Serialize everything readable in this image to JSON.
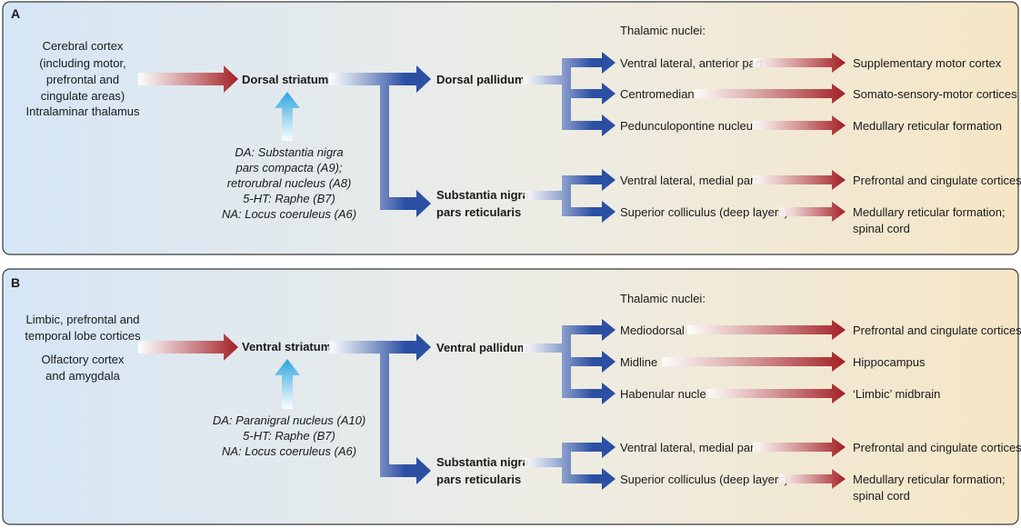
{
  "colors": {
    "panel_left": "#d6e6f6",
    "panel_mid": "#ecece6",
    "panel_right": "#f5e6c6",
    "red_arrow": "#a31f24",
    "blue_arrow": "#2b4fa3",
    "light_blue_arrow": "#29a3e0"
  },
  "panelA": {
    "label": "A",
    "inputs": [
      "Cerebral cortex",
      "(including motor,",
      "prefrontal and",
      "cingulate areas)",
      "Intralaminar thalamus"
    ],
    "striatum": "Dorsal striatum",
    "modulators": [
      "DA: Substantia nigra",
      "pars compacta (A9);",
      "retrorubral nucleus (A8)",
      "5-HT: Raphe (B7)",
      "NA: Locus coeruleus (A6)"
    ],
    "pallidum": "Dorsal pallidum",
    "snr": [
      "Substantia nigra",
      "pars reticularis"
    ],
    "thalamic_heading": "Thalamic nuclei:",
    "pallidum_targets": [
      {
        "nucleus": "Ventral lateral, anterior part",
        "output": [
          "Supplementary motor cortex"
        ]
      },
      {
        "nucleus": "Centromedian",
        "output": [
          "Somato-sensory-motor cortices"
        ]
      },
      {
        "nucleus": "Pedunculopontine nucleus",
        "output": [
          "Medullary reticular formation"
        ]
      }
    ],
    "snr_targets": [
      {
        "nucleus": "Ventral lateral, medial part",
        "output": [
          "Prefrontal and cingulate cortices"
        ]
      },
      {
        "nucleus": "Superior colliculus (deep layers)",
        "output": [
          "Medullary reticular formation;",
          "spinal cord"
        ]
      }
    ]
  },
  "panelB": {
    "label": "B",
    "inputs": [
      "Limbic, prefrontal and",
      "temporal lobe cortices"
    ],
    "inputs2": [
      "Olfactory cortex",
      "and amygdala"
    ],
    "striatum": "Ventral striatum",
    "modulators": [
      "DA: Paranigral nucleus (A10)",
      "5-HT: Raphe (B7)",
      "NA: Locus coeruleus (A6)"
    ],
    "pallidum": "Ventral pallidum",
    "snr": [
      "Substantia nigra",
      "pars reticularis"
    ],
    "thalamic_heading": "Thalamic nuclei:",
    "pallidum_targets": [
      {
        "nucleus": "Mediodorsal",
        "output": [
          "Prefrontal and cingulate cortices"
        ]
      },
      {
        "nucleus": "Midline",
        "output": [
          "Hippocampus"
        ]
      },
      {
        "nucleus": "Habenular nuclei",
        "output": [
          "‘Limbic’ midbrain"
        ]
      }
    ],
    "snr_targets": [
      {
        "nucleus": "Ventral lateral, medial part",
        "output": [
          "Prefrontal and cingulate cortices"
        ]
      },
      {
        "nucleus": "Superior colliculus (deep layers)",
        "output": [
          "Medullary reticular formation;",
          "spinal cord"
        ]
      }
    ]
  }
}
